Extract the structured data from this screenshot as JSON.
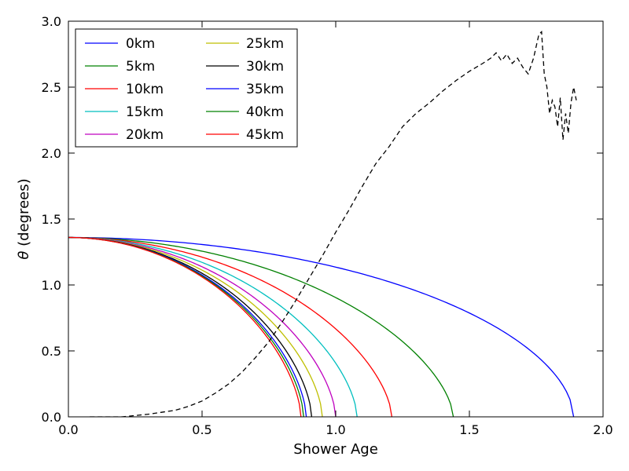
{
  "chart_data": {
    "type": "line",
    "title": "",
    "xlabel": "Shower Age",
    "ylabel_symbol": "θ",
    "ylabel_rest": " (degrees)",
    "xlim": [
      0.0,
      2.0
    ],
    "ylim": [
      0.0,
      3.0
    ],
    "xticks": [
      0.0,
      0.5,
      1.0,
      1.5,
      2.0
    ],
    "yticks": [
      0.0,
      0.5,
      1.0,
      1.5,
      2.0,
      2.5,
      3.0
    ],
    "xtick_labels": [
      "0.0",
      "0.5",
      "1.0",
      "1.5",
      "2.0"
    ],
    "ytick_labels": [
      "0.0",
      "0.5",
      "1.0",
      "1.5",
      "2.0",
      "2.5",
      "3.0"
    ],
    "legend_position": "top-left",
    "grid": false,
    "series": [
      {
        "name": "0km",
        "color": "#0000ff",
        "start": 1.36,
        "end_x": 1.89,
        "exponent": 0.55
      },
      {
        "name": "5km",
        "color": "#008000",
        "start": 1.36,
        "end_x": 1.44,
        "exponent": 0.62
      },
      {
        "name": "10km",
        "color": "#ff0000",
        "start": 1.36,
        "end_x": 1.21,
        "exponent": 0.62
      },
      {
        "name": "15km",
        "color": "#00bfbf",
        "start": 1.36,
        "end_x": 1.08,
        "exponent": 0.62
      },
      {
        "name": "20km",
        "color": "#bf00bf",
        "start": 1.36,
        "end_x": 1.0,
        "exponent": 0.62
      },
      {
        "name": "25km",
        "color": "#bfbf00",
        "start": 1.36,
        "end_x": 0.95,
        "exponent": 0.62
      },
      {
        "name": "30km",
        "color": "#000000",
        "start": 1.36,
        "end_x": 0.91,
        "exponent": 0.62
      },
      {
        "name": "35km",
        "color": "#0000ff",
        "start": 1.36,
        "end_x": 0.89,
        "exponent": 0.62
      },
      {
        "name": "40km",
        "color": "#008000",
        "start": 1.36,
        "end_x": 0.88,
        "exponent": 0.62
      },
      {
        "name": "45km",
        "color": "#ff0000",
        "start": 1.36,
        "end_x": 0.87,
        "exponent": 0.62
      }
    ],
    "dashed_series": {
      "name": "",
      "color": "#000000",
      "x": [
        0.08,
        0.2,
        0.3,
        0.4,
        0.45,
        0.5,
        0.55,
        0.6,
        0.65,
        0.7,
        0.75,
        0.8,
        0.85,
        0.9,
        0.95,
        1.0,
        1.05,
        1.1,
        1.15,
        1.2,
        1.25,
        1.3,
        1.35,
        1.4,
        1.45,
        1.5,
        1.55,
        1.58,
        1.6,
        1.62,
        1.64,
        1.66,
        1.68,
        1.7,
        1.72,
        1.74,
        1.76,
        1.77,
        1.78,
        1.79,
        1.8,
        1.81,
        1.82,
        1.83,
        1.84,
        1.85,
        1.86,
        1.87,
        1.88,
        1.89,
        1.9
      ],
      "y": [
        0.0,
        0.0,
        0.02,
        0.05,
        0.08,
        0.12,
        0.18,
        0.25,
        0.34,
        0.45,
        0.57,
        0.72,
        0.88,
        1.05,
        1.22,
        1.4,
        1.57,
        1.75,
        1.92,
        2.05,
        2.2,
        2.3,
        2.38,
        2.47,
        2.55,
        2.62,
        2.68,
        2.72,
        2.76,
        2.7,
        2.75,
        2.68,
        2.72,
        2.65,
        2.6,
        2.72,
        2.9,
        2.92,
        2.6,
        2.5,
        2.3,
        2.4,
        2.35,
        2.2,
        2.42,
        2.1,
        2.3,
        2.15,
        2.38,
        2.5,
        2.4
      ]
    },
    "legend": {
      "col1": [
        "0km",
        "5km",
        "10km",
        "15km",
        "20km"
      ],
      "col2": [
        "25km",
        "30km",
        "35km",
        "40km",
        "45km"
      ]
    }
  }
}
